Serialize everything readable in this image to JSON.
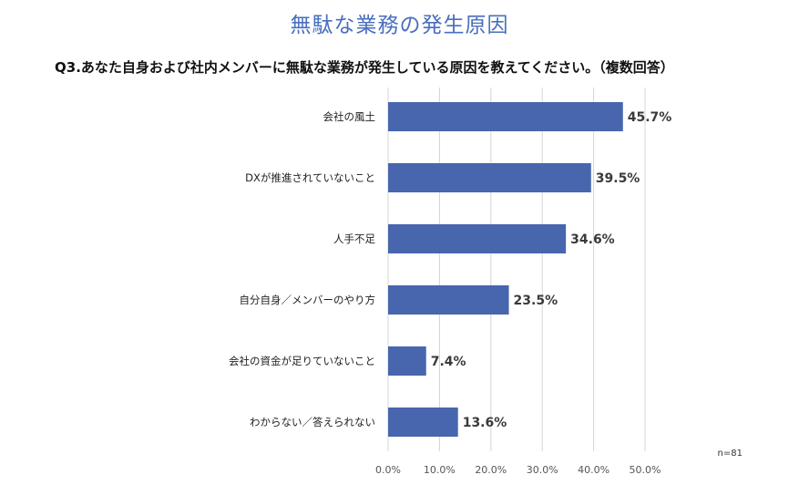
{
  "chart_data": {
    "type": "bar",
    "orientation": "horizontal",
    "title": "無駄な業務の発生原因",
    "subtitle": "Q3.あなた自身および社内メンバーに無駄な業務が発生している原因を教えてください。（複数回答）",
    "categories": [
      "会社の風土",
      "DXが推進されていないこと",
      "人手不足",
      "自分自身／メンバーのやり方",
      "会社の資金が足りていないこと",
      "わからない／答えられない"
    ],
    "values": [
      45.7,
      39.5,
      34.6,
      23.5,
      7.4,
      13.6
    ],
    "value_labels": [
      "45.7%",
      "39.5%",
      "34.6%",
      "23.5%",
      "7.4%",
      "13.6%"
    ],
    "xlim": [
      0,
      50
    ],
    "xticks": [
      0,
      10,
      20,
      30,
      40,
      50
    ],
    "xtick_labels": [
      "0.0%",
      "10.0%",
      "20.0%",
      "30.0%",
      "40.0%",
      "50.0%"
    ],
    "grid": true,
    "note": "n=81",
    "bar_color": "#4766ae",
    "title_color": "#4a6fbd",
    "grid_color": "#d4d4d4"
  }
}
